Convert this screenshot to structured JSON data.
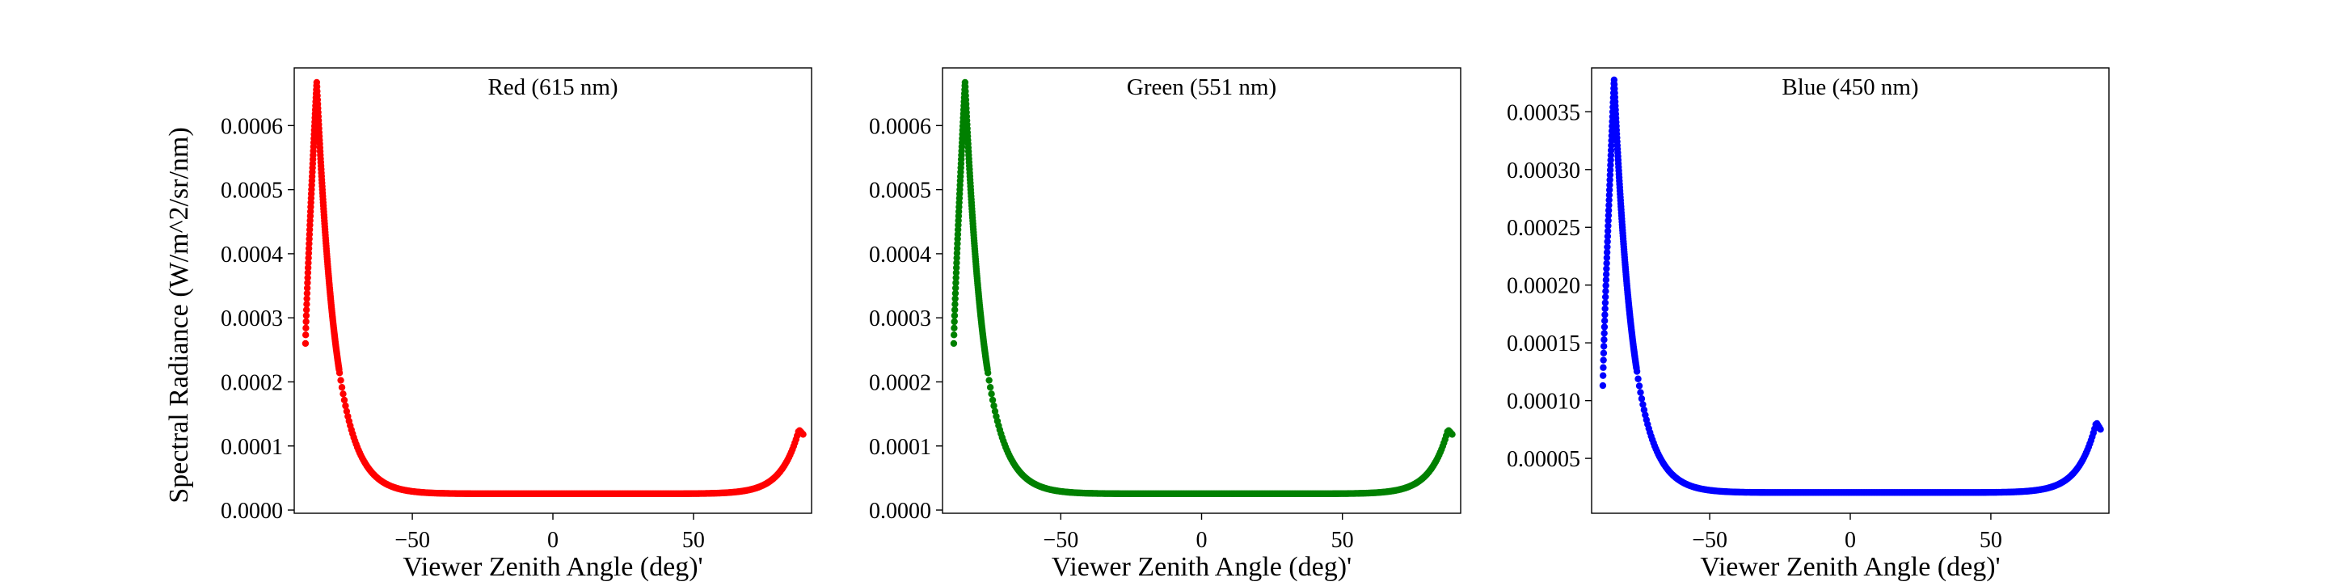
{
  "figure": {
    "ylabel": "Spectral Radiance (W/m^2/sr/nm)"
  },
  "chart_data": [
    {
      "type": "scatter",
      "title": "Red (615 nm)",
      "xlabel": "Viewer Zenith Angle (deg)'",
      "color": "#ff0000",
      "xlim": [
        -92,
        92
      ],
      "ylim": [
        -5e-06,
        0.00069
      ],
      "xticks": [
        -50,
        0,
        50
      ],
      "xtick_labels": [
        "−50",
        "0",
        "50"
      ],
      "yticks": [
        0,
        0.0001,
        0.0002,
        0.0003,
        0.0004,
        0.0005,
        0.0006
      ],
      "ytick_labels": [
        "0.0000",
        "0.0001",
        "0.0002",
        "0.0003",
        "0.0004",
        "0.0005",
        "0.0006"
      ],
      "grid": false,
      "model": {
        "x_start": -88,
        "x_end": 89,
        "peak_x": -84,
        "peak": 0.000668,
        "first": 0.00026,
        "hf": 4.65e-05,
        "edge": 0.000118,
        "re_peak_x": 87.5,
        "re_peak": 0.000125,
        "hr": 1e-05,
        "min": 2.5e-05
      }
    },
    {
      "type": "scatter",
      "title": "Green (551 nm)",
      "xlabel": "Viewer Zenith Angle (deg)'",
      "color": "#008000",
      "xlim": [
        -92,
        92
      ],
      "ylim": [
        -5e-06,
        0.00069
      ],
      "xticks": [
        -50,
        0,
        50
      ],
      "xtick_labels": [
        "−50",
        "0",
        "50"
      ],
      "yticks": [
        0,
        0.0001,
        0.0002,
        0.0003,
        0.0004,
        0.0005,
        0.0006
      ],
      "ytick_labels": [
        "0.0000",
        "0.0001",
        "0.0002",
        "0.0003",
        "0.0004",
        "0.0005",
        "0.0006"
      ],
      "grid": false,
      "model": {
        "x_start": -88,
        "x_end": 89,
        "peak_x": -84,
        "peak": 0.000668,
        "first": 0.00026,
        "hf": 4.6e-05,
        "edge": 0.000118,
        "re_peak_x": 87.5,
        "re_peak": 0.000125,
        "hr": 1e-05,
        "min": 2.5e-05
      }
    },
    {
      "type": "scatter",
      "title": "Blue (450 nm)",
      "xlabel": "Viewer Zenith Angle (deg)'",
      "color": "#0000ff",
      "xlim": [
        -92,
        92
      ],
      "ylim": [
        2.5e-06,
        0.000388
      ],
      "xticks": [
        -50,
        0,
        50
      ],
      "xtick_labels": [
        "−50",
        "0",
        "50"
      ],
      "yticks": [
        5e-05,
        0.0001,
        0.00015,
        0.0002,
        0.00025,
        0.0003,
        0.00035
      ],
      "ytick_labels": [
        "0.00005",
        "0.00010",
        "0.00015",
        "0.00020",
        "0.00025",
        "0.00030",
        "0.00035"
      ],
      "grid": false,
      "model": {
        "x_start": -88,
        "x_end": 89,
        "peak_x": -84,
        "peak": 0.000378,
        "first": 0.000113,
        "hf": 4.6e-05,
        "edge": 7.5e-05,
        "re_peak_x": 87.5,
        "re_peak": 8.1e-05,
        "hr": 1e-05,
        "min": 2e-05
      }
    }
  ]
}
